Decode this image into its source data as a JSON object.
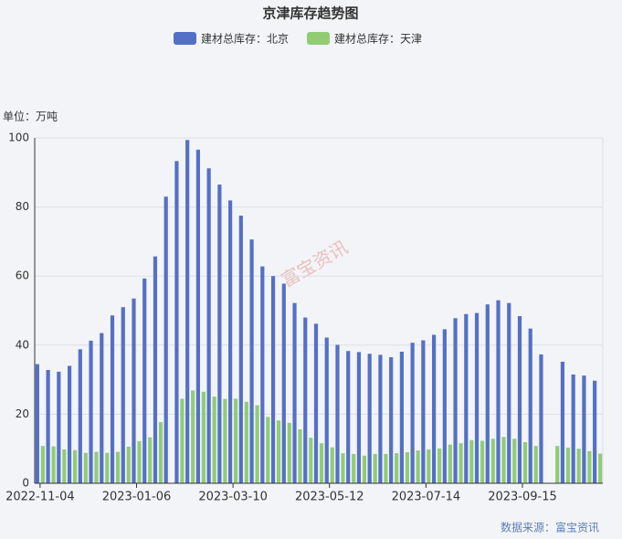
{
  "chart_data": {
    "type": "bar",
    "title": "京津库存趋势图",
    "unit_label": "单位：万吨",
    "source": "数据来源：富宝资讯",
    "watermark": "富宝资讯",
    "categories": [
      "2022-11-04",
      null,
      null,
      null,
      null,
      null,
      null,
      null,
      null,
      "2023-01-06",
      null,
      null,
      null,
      null,
      null,
      null,
      null,
      null,
      "2023-03-10",
      null,
      null,
      null,
      null,
      null,
      null,
      null,
      null,
      "2023-05-12",
      null,
      null,
      null,
      null,
      null,
      null,
      null,
      null,
      "2023-07-14",
      null,
      null,
      null,
      null,
      null,
      null,
      null,
      null,
      "2023-09-15",
      null,
      null,
      null,
      null,
      null,
      null,
      null
    ],
    "series": [
      {
        "name": "建材总库存：北京",
        "color": "#5470c6",
        "values": [
          34.5,
          32.8,
          32.3,
          34,
          38.8,
          41.3,
          43.5,
          48.6,
          51,
          53.5,
          59.3,
          65.7,
          83,
          93.3,
          99.4,
          96.6,
          91.2,
          86.5,
          81.9,
          77.5,
          70.6,
          62.8,
          60,
          57.8,
          52.2,
          48,
          46.2,
          42.2,
          40.1,
          38.3,
          38,
          37.5,
          37.2,
          36.5,
          38.1,
          40.7,
          41.4,
          43,
          44.6,
          47.8,
          49,
          49.3,
          51.8,
          53,
          52.2,
          48.4,
          44.8,
          37.3,
          null,
          35.2,
          31.5,
          31.2,
          29.7
        ]
      },
      {
        "name": "建材总库存：天津",
        "color": "#91cc75",
        "values": [
          10.8,
          10.7,
          9.8,
          9.6,
          8.8,
          9.1,
          8.8,
          9.1,
          10.6,
          12.2,
          13.3,
          17.7,
          null,
          24.5,
          26.9,
          26.5,
          25.1,
          24.4,
          24.5,
          23.6,
          22.6,
          19.2,
          18.2,
          17.5,
          15.6,
          13.2,
          11.6,
          10.4,
          8.7,
          8.5,
          8,
          8.5,
          8.5,
          8.7,
          9,
          9.5,
          9.8,
          10.1,
          11.2,
          11.6,
          12.5,
          12.3,
          12.9,
          13.4,
          12.9,
          11.9,
          10.8,
          null,
          10.8,
          10.3,
          10,
          9.3,
          8.6
        ]
      }
    ],
    "ylim": [
      0,
      100
    ],
    "yticks": [
      0,
      20,
      40,
      60,
      80,
      100
    ],
    "grid": true
  }
}
